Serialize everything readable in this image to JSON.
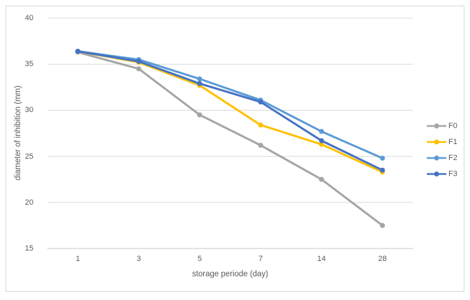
{
  "chart_data": {
    "type": "line",
    "title": "",
    "xlabel": "storage periode (day)",
    "ylabel": "diameter of inhibition (mm)",
    "categories": [
      "1",
      "3",
      "5",
      "7",
      "14",
      "28"
    ],
    "y_ticks": [
      40,
      35,
      30,
      25,
      20,
      15
    ],
    "ylim": [
      15,
      40
    ],
    "grid": "horizontal",
    "legend_position": "right",
    "marker": "circle",
    "series": [
      {
        "name": "F0",
        "color": "#a5a5a5",
        "values": [
          36.3,
          34.5,
          29.5,
          26.2,
          22.5,
          17.5
        ]
      },
      {
        "name": "F1",
        "color": "#ffc000",
        "values": [
          36.4,
          35.2,
          32.7,
          28.4,
          26.3,
          23.3
        ]
      },
      {
        "name": "F2",
        "color": "#5b9bd5",
        "values": [
          36.4,
          35.5,
          33.4,
          31.1,
          27.7,
          24.8
        ]
      },
      {
        "name": "F3",
        "color": "#4472c4",
        "values": [
          36.4,
          35.3,
          32.9,
          30.9,
          26.7,
          23.5
        ]
      }
    ],
    "colors": {
      "grid": "#d9d9d9",
      "axis_line": "#c9c9c9",
      "text": "#595959",
      "frame_border": "#d9d9d9",
      "background": "#ffffff"
    }
  }
}
